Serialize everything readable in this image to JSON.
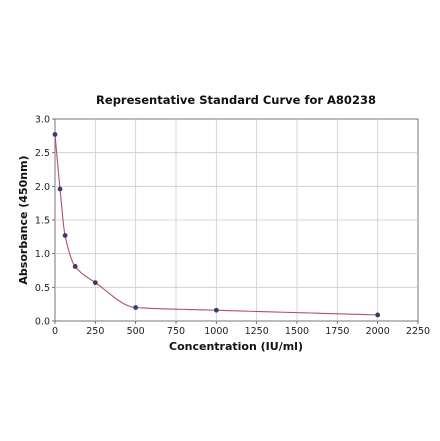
{
  "chart_data": {
    "type": "scatter",
    "title": "Representative Standard Curve for A80238",
    "xlabel": "Concentration (IU/ml)",
    "ylabel": "Absorbance (450nm)",
    "xlim": [
      0,
      2250
    ],
    "ylim": [
      0,
      3.0
    ],
    "xticks": [
      0,
      250,
      500,
      750,
      1000,
      1250,
      1500,
      1750,
      2000,
      2250
    ],
    "yticks": [
      0.0,
      0.5,
      1.0,
      1.5,
      2.0,
      2.5,
      3.0
    ],
    "ytick_labels": [
      "0.0",
      "0.5",
      "1.0",
      "1.5",
      "2.0",
      "2.5",
      "3.0"
    ],
    "grid": true,
    "legend": "none",
    "x": [
      0,
      31.25,
      62.5,
      125,
      250,
      500,
      1000,
      2000
    ],
    "y": [
      2.77,
      1.96,
      1.27,
      0.81,
      0.57,
      0.2,
      0.16,
      0.09
    ],
    "fit_curve": true,
    "point_color": "#3a3a6e",
    "curve_color": "#b05070"
  }
}
